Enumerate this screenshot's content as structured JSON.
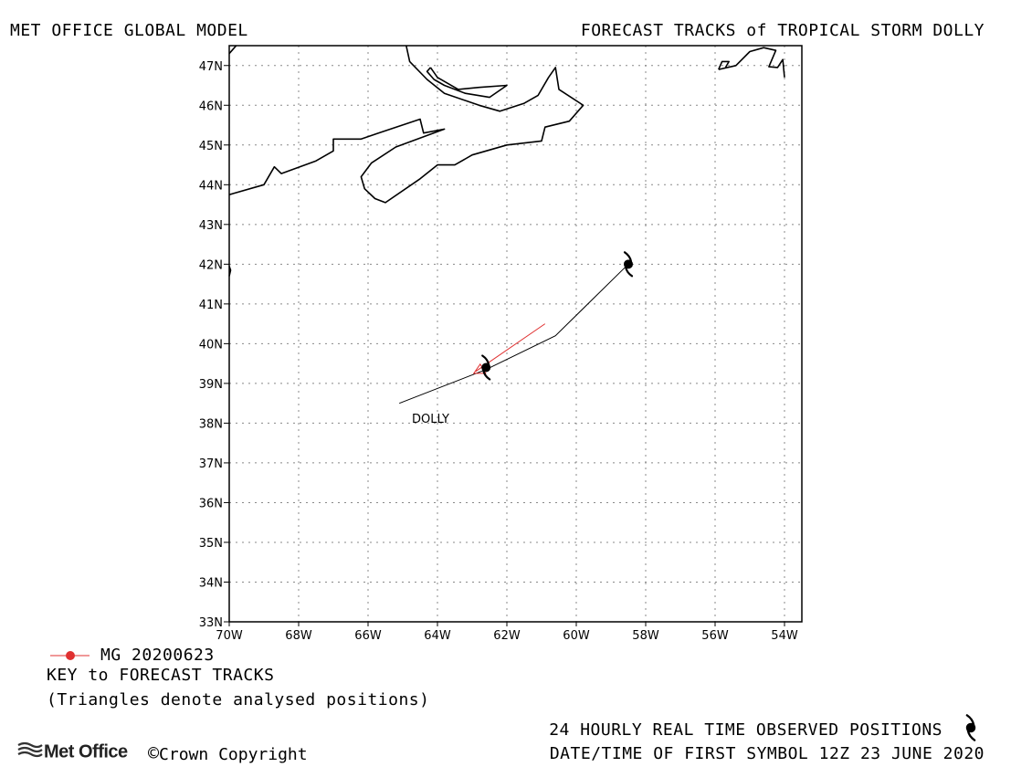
{
  "header": {
    "left_title": "MET OFFICE GLOBAL MODEL",
    "right_title": "FORECAST TRACKS of TROPICAL STORM DOLLY"
  },
  "map": {
    "lon_range": [
      -70,
      -53.5
    ],
    "lat_range": [
      33,
      47.5
    ],
    "grid": "dotted",
    "lat_labels": [
      "33N",
      "34N",
      "35N",
      "36N",
      "37N",
      "38N",
      "39N",
      "40N",
      "41N",
      "42N",
      "43N",
      "44N",
      "45N",
      "46N",
      "47N"
    ],
    "lon_labels": [
      "70W",
      "68W",
      "66W",
      "64W",
      "62W",
      "60W",
      "58W",
      "56W",
      "54W"
    ],
    "storm_label": "DOLLY",
    "observed_track": [
      {
        "lon": -65.1,
        "lat": 38.5
      },
      {
        "lon": -62.6,
        "lat": 39.35
      },
      {
        "lon": -60.6,
        "lat": 40.2
      },
      {
        "lon": -58.5,
        "lat": 42.0
      }
    ],
    "observed_symbols": [
      {
        "lon": -62.6,
        "lat": 39.4
      },
      {
        "lon": -58.5,
        "lat": 42.0
      }
    ],
    "forecast_track": {
      "color": "#e03030",
      "points": [
        {
          "lon": -62.9,
          "lat": 39.3
        },
        {
          "lon": -60.9,
          "lat": 40.5
        }
      ],
      "analysed_triangle": {
        "lon": -62.9,
        "lat": 39.3
      }
    },
    "coastlines": [
      [
        [
          -70,
          43.75
        ],
        [
          -69,
          44.0
        ],
        [
          -68.7,
          44.45
        ],
        [
          -68.5,
          44.28
        ],
        [
          -67.5,
          44.6
        ],
        [
          -67,
          44.85
        ],
        [
          -67,
          45.15
        ],
        [
          -66.2,
          45.15
        ],
        [
          -65.7,
          45.3
        ],
        [
          -64.5,
          45.65
        ],
        [
          -64.4,
          45.3
        ],
        [
          -63.8,
          45.4
        ],
        [
          -65.2,
          44.95
        ],
        [
          -65.9,
          44.55
        ],
        [
          -66.2,
          44.2
        ],
        [
          -66.1,
          43.9
        ],
        [
          -65.8,
          43.65
        ],
        [
          -65.5,
          43.55
        ],
        [
          -64.5,
          44.15
        ],
        [
          -64,
          44.5
        ],
        [
          -63.5,
          44.5
        ],
        [
          -63,
          44.75
        ],
        [
          -62,
          45
        ],
        [
          -61,
          45.1
        ],
        [
          -60.9,
          45.45
        ],
        [
          -60.2,
          45.6
        ],
        [
          -59.8,
          46.0
        ],
        [
          -60.5,
          46.4
        ],
        [
          -60.6,
          46.95
        ],
        [
          -60.8,
          46.7
        ],
        [
          -61.1,
          46.25
        ],
        [
          -61.5,
          46.05
        ],
        [
          -62.2,
          45.85
        ],
        [
          -62.8,
          46.0
        ],
        [
          -63.8,
          46.3
        ],
        [
          -64.3,
          46.65
        ],
        [
          -64.8,
          47.1
        ],
        [
          -64.9,
          47.5
        ]
      ],
      [
        [
          -64.2,
          46.95
        ],
        [
          -64.0,
          46.7
        ],
        [
          -63.4,
          46.4
        ],
        [
          -62.8,
          46.45
        ],
        [
          -62.0,
          46.5
        ],
        [
          -62.5,
          46.2
        ],
        [
          -63.2,
          46.3
        ],
        [
          -63.8,
          46.5
        ],
        [
          -64.1,
          46.65
        ],
        [
          -64.3,
          46.85
        ],
        [
          -64.2,
          46.95
        ]
      ],
      [
        [
          -55.9,
          46.9
        ],
        [
          -55.4,
          47.0
        ],
        [
          -55.0,
          47.35
        ],
        [
          -54.6,
          47.45
        ],
        [
          -54.25,
          47.38
        ],
        [
          -54.45,
          46.97
        ],
        [
          -54.2,
          46.95
        ],
        [
          -54.05,
          47.15
        ],
        [
          -54,
          46.7
        ]
      ],
      [
        [
          -55.9,
          46.9
        ],
        [
          -55.8,
          47.1
        ],
        [
          -55.6,
          47.1
        ],
        [
          -55.7,
          46.95
        ]
      ],
      [
        [
          -70,
          41.95
        ],
        [
          -69.96,
          41.85
        ],
        [
          -70,
          41.7
        ]
      ],
      [
        [
          -70,
          47.3
        ],
        [
          -69.8,
          47.5
        ]
      ]
    ]
  },
  "legend": {
    "model_entry": "MG 20200623",
    "model_color": "#e03030",
    "key_title": "KEY to FORECAST TRACKS",
    "note": "(Triangles denote analysed positions)"
  },
  "footer": {
    "observed_note": "24 HOURLY REAL TIME OBSERVED POSITIONS",
    "first_symbol": "DATE/TIME OF FIRST SYMBOL 12Z 23 JUNE 2020",
    "logo": "Met Office",
    "copyright": "Crown Copyright"
  }
}
